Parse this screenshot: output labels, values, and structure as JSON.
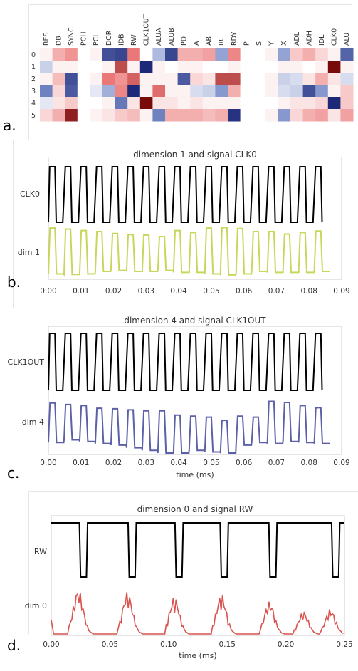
{
  "panels": {
    "a": {
      "label": "a."
    },
    "b": {
      "label": "b.",
      "title": "dimension 1 and signal CLK0",
      "signal": "CLK0",
      "dim": "dim 1",
      "dim_color": "#c9d65a"
    },
    "c": {
      "label": "c.",
      "title": "dimension 4 and signal CLK1OUT",
      "signal": "CLK1OUT",
      "dim": "dim 4",
      "dim_color": "#5b60a8"
    },
    "d": {
      "label": "d.",
      "title": "dimension 0 and signal RW",
      "signal": "RW",
      "dim": "dim 0",
      "dim_color": "#d9534f"
    }
  },
  "chart_data": [
    {
      "type": "heatmap",
      "columns": [
        "RES",
        "DB",
        "SYNC",
        "PCH",
        "PCL",
        "DOR",
        "IDB",
        "RW",
        "CLK1OUT",
        "ALUA",
        "ALUB",
        "PD",
        "A",
        "AB",
        "IR",
        "RDY",
        "P",
        "S",
        "Y",
        "X",
        "ADL",
        "ADH",
        "IDL",
        "CLK0",
        "ALU"
      ],
      "rows": [
        "0",
        "1",
        "2",
        "3",
        "4",
        "5"
      ],
      "values": [
        [
          0.05,
          0.3,
          0.4,
          0,
          0.05,
          -0.8,
          -0.85,
          0.5,
          0,
          -0.3,
          -0.85,
          0.3,
          0.3,
          0.35,
          -0.4,
          0.45,
          0,
          0,
          0.05,
          -0.4,
          0.2,
          0.3,
          0.15,
          0.05,
          -0.7
        ],
        [
          -0.2,
          0.05,
          0.05,
          0,
          0,
          0.05,
          0.7,
          0.05,
          -1.0,
          0.05,
          0,
          0.05,
          0.05,
          0,
          0,
          0.05,
          0,
          0,
          0,
          0.05,
          0.05,
          0,
          0.05,
          1.0,
          0.05
        ],
        [
          0.05,
          0.25,
          -0.8,
          0,
          0.05,
          0.5,
          0.4,
          0.6,
          0.05,
          0.05,
          0.05,
          -0.75,
          0.15,
          0.1,
          0.7,
          0.7,
          0,
          0,
          0.05,
          -0.2,
          -0.15,
          0.1,
          0.3,
          0.1,
          -0.15
        ],
        [
          -0.55,
          0.15,
          -0.75,
          0,
          -0.1,
          -0.35,
          0.45,
          -1.0,
          0.05,
          0.55,
          0.05,
          0.05,
          -0.15,
          -0.2,
          -0.45,
          0.3,
          0,
          0,
          0.05,
          -0.15,
          -0.2,
          -0.8,
          -0.45,
          0.05,
          0.2
        ],
        [
          -0.1,
          0.1,
          0.2,
          0,
          0,
          0.05,
          -0.6,
          0.1,
          1.0,
          0.1,
          0.1,
          0.05,
          0.1,
          0.05,
          0.05,
          0.05,
          0,
          0,
          0,
          0.05,
          0.1,
          0.1,
          0.15,
          -1.0,
          0.2
        ],
        [
          0.15,
          0.3,
          0.9,
          0,
          0.05,
          0.1,
          0.2,
          0.25,
          0.05,
          -0.55,
          0.3,
          0.3,
          0.3,
          0.25,
          0.3,
          -0.95,
          0,
          0,
          0.05,
          -0.45,
          0.15,
          0.3,
          0.35,
          0.1,
          0.35
        ]
      ]
    },
    {
      "type": "line",
      "title": "dimension 1 and signal CLK0",
      "xlabel": "",
      "xlim": [
        0.0,
        0.09
      ],
      "xticks": [
        "0.00",
        "0.01",
        "0.02",
        "0.03",
        "0.04",
        "0.05",
        "0.06",
        "0.07",
        "0.08",
        "0.09"
      ],
      "series": [
        {
          "name": "CLK0",
          "kind": "square",
          "period": 0.0048,
          "duty": 0.5,
          "end": 0.0825
        },
        {
          "name": "dim 1",
          "kind": "wave",
          "period": 0.0048,
          "end": 0.0825,
          "highs": [
            0.97,
            0.95,
            0.92,
            0.9,
            0.86,
            0.84,
            0.83,
            0.8,
            0.92,
            0.88,
            0.97,
            0.98,
            0.96,
            0.9,
            0.9,
            0.85,
            0.88,
            0.91,
            0.89,
            0.8,
            0.9,
            0.9,
            0.9,
            0.78,
            0.75,
            0.85,
            0.85,
            0.8,
            0.8,
            0.9,
            0.86,
            0.86,
            0.85,
            0.9
          ],
          "lows": [
            0.05,
            0.04,
            0.05,
            0.1,
            0.12,
            0.1,
            0.1,
            0.12,
            0.08,
            0.08,
            0.05,
            0.03,
            0.05,
            0.1,
            0.08,
            0.08,
            0.08,
            0.1,
            0.06,
            0.1,
            0.08,
            0.05,
            0.05,
            0.06,
            0.04,
            0.06,
            0.05,
            0.08,
            0.1,
            0.05,
            0.06,
            0.05,
            0.05,
            0.05
          ]
        }
      ]
    },
    {
      "type": "line",
      "title": "dimension 4 and signal CLK1OUT",
      "xlabel": "time (ms)",
      "xlim": [
        0.0,
        0.09
      ],
      "xticks": [
        "0.00",
        "0.01",
        "0.02",
        "0.03",
        "0.04",
        "0.05",
        "0.06",
        "0.07",
        "0.08",
        "0.09"
      ],
      "series": [
        {
          "name": "CLK1OUT",
          "kind": "square",
          "period": 0.0048,
          "duty": 0.5,
          "end": 0.0825
        },
        {
          "name": "dim 4",
          "kind": "wave",
          "period": 0.0048,
          "end": 0.0825,
          "highs": [
            0.95,
            0.92,
            0.9,
            0.85,
            0.84,
            0.82,
            0.8,
            0.8,
            0.72,
            0.7,
            0.68,
            0.62,
            0.7,
            0.68,
            0.98,
            0.96,
            0.9,
            0.86,
            0.84,
            0.82,
            0.75,
            0.72,
            0.62,
            0.6,
            0.55,
            0.5,
            0.7,
            0.62
          ],
          "lows": [
            0.2,
            0.25,
            0.22,
            0.18,
            0.15,
            0.1,
            0.05,
            0.0,
            0.0,
            0.05,
            0.02,
            0.0,
            0.15,
            0.2,
            0.18,
            0.22,
            0.2,
            0.18,
            0.15,
            0.12,
            0.08,
            0.06,
            0.05,
            0.02,
            0.05,
            0.03,
            0.0,
            0.0
          ]
        }
      ]
    },
    {
      "type": "line",
      "title": "dimension 0 and signal RW",
      "xlabel": "time (ms)",
      "xlim": [
        0.0,
        0.25
      ],
      "xticks": [
        "0.00",
        "0.05",
        "0.10",
        "0.15",
        "0.20",
        "0.25"
      ],
      "series": [
        {
          "name": "RW",
          "kind": "pulses",
          "lows": [
            [
              0.025,
              0.03
            ],
            [
              0.0665,
              0.0715
            ],
            [
              0.1065,
              0.1115
            ],
            [
              0.145,
              0.15
            ],
            [
              0.1865,
              0.1915
            ],
            [
              0.24,
              0.245
            ]
          ]
        },
        {
          "name": "dim 0",
          "kind": "bursts",
          "centers": [
            0.023,
            0.065,
            0.105,
            0.145,
            0.186,
            0.215,
            0.238
          ],
          "amps": [
            0.9,
            0.85,
            0.75,
            0.8,
            0.65,
            0.45,
            0.5
          ]
        }
      ]
    }
  ]
}
